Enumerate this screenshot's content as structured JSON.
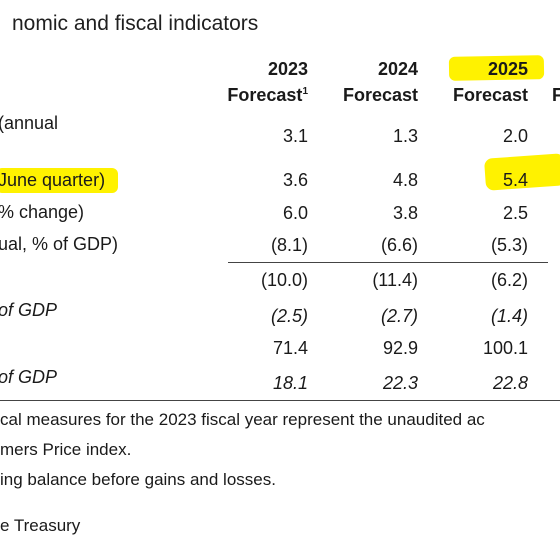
{
  "title": "nomic and fiscal indicators",
  "columns": [
    {
      "year": "2023",
      "label": "Forecast",
      "sup": "1"
    },
    {
      "year": "2024",
      "label": "Forecast",
      "sup": ""
    },
    {
      "year": "2025",
      "label": "Forecast",
      "sup": ""
    },
    {
      "year": "",
      "label": "F",
      "sup": ""
    }
  ],
  "rows": [
    {
      "label": "(annual",
      "values": [
        "3.1",
        "1.3",
        "2.0"
      ],
      "italic": false
    },
    {
      "label": "June quarter)",
      "values": [
        "3.6",
        "4.8",
        "5.4"
      ],
      "italic": false
    },
    {
      "label": "% change)",
      "values": [
        "6.0",
        "3.8",
        "2.5"
      ],
      "italic": false
    },
    {
      "label": "ual, % of GDP)",
      "values": [
        "(8.1)",
        "(6.6)",
        "(5.3)"
      ],
      "italic": false
    },
    {
      "label": "",
      "values": [
        "(10.0)",
        "(11.4)",
        "(6.2)"
      ],
      "italic": false
    },
    {
      "label": "of GDP",
      "values": [
        "(2.5)",
        "(2.7)",
        "(1.4)"
      ],
      "italic": true
    },
    {
      "label": "",
      "values": [
        "71.4",
        "92.9",
        "100.1"
      ],
      "italic": false
    },
    {
      "label": "of GDP",
      "values": [
        "18.1",
        "22.3",
        "22.8"
      ],
      "italic": true
    }
  ],
  "notes": [
    "cal measures for the 2023 fiscal year represent the unaudited ac",
    "mers Price index.",
    "ing balance before gains and losses."
  ],
  "source": "e Treasury",
  "highlight_color": "#fff200"
}
